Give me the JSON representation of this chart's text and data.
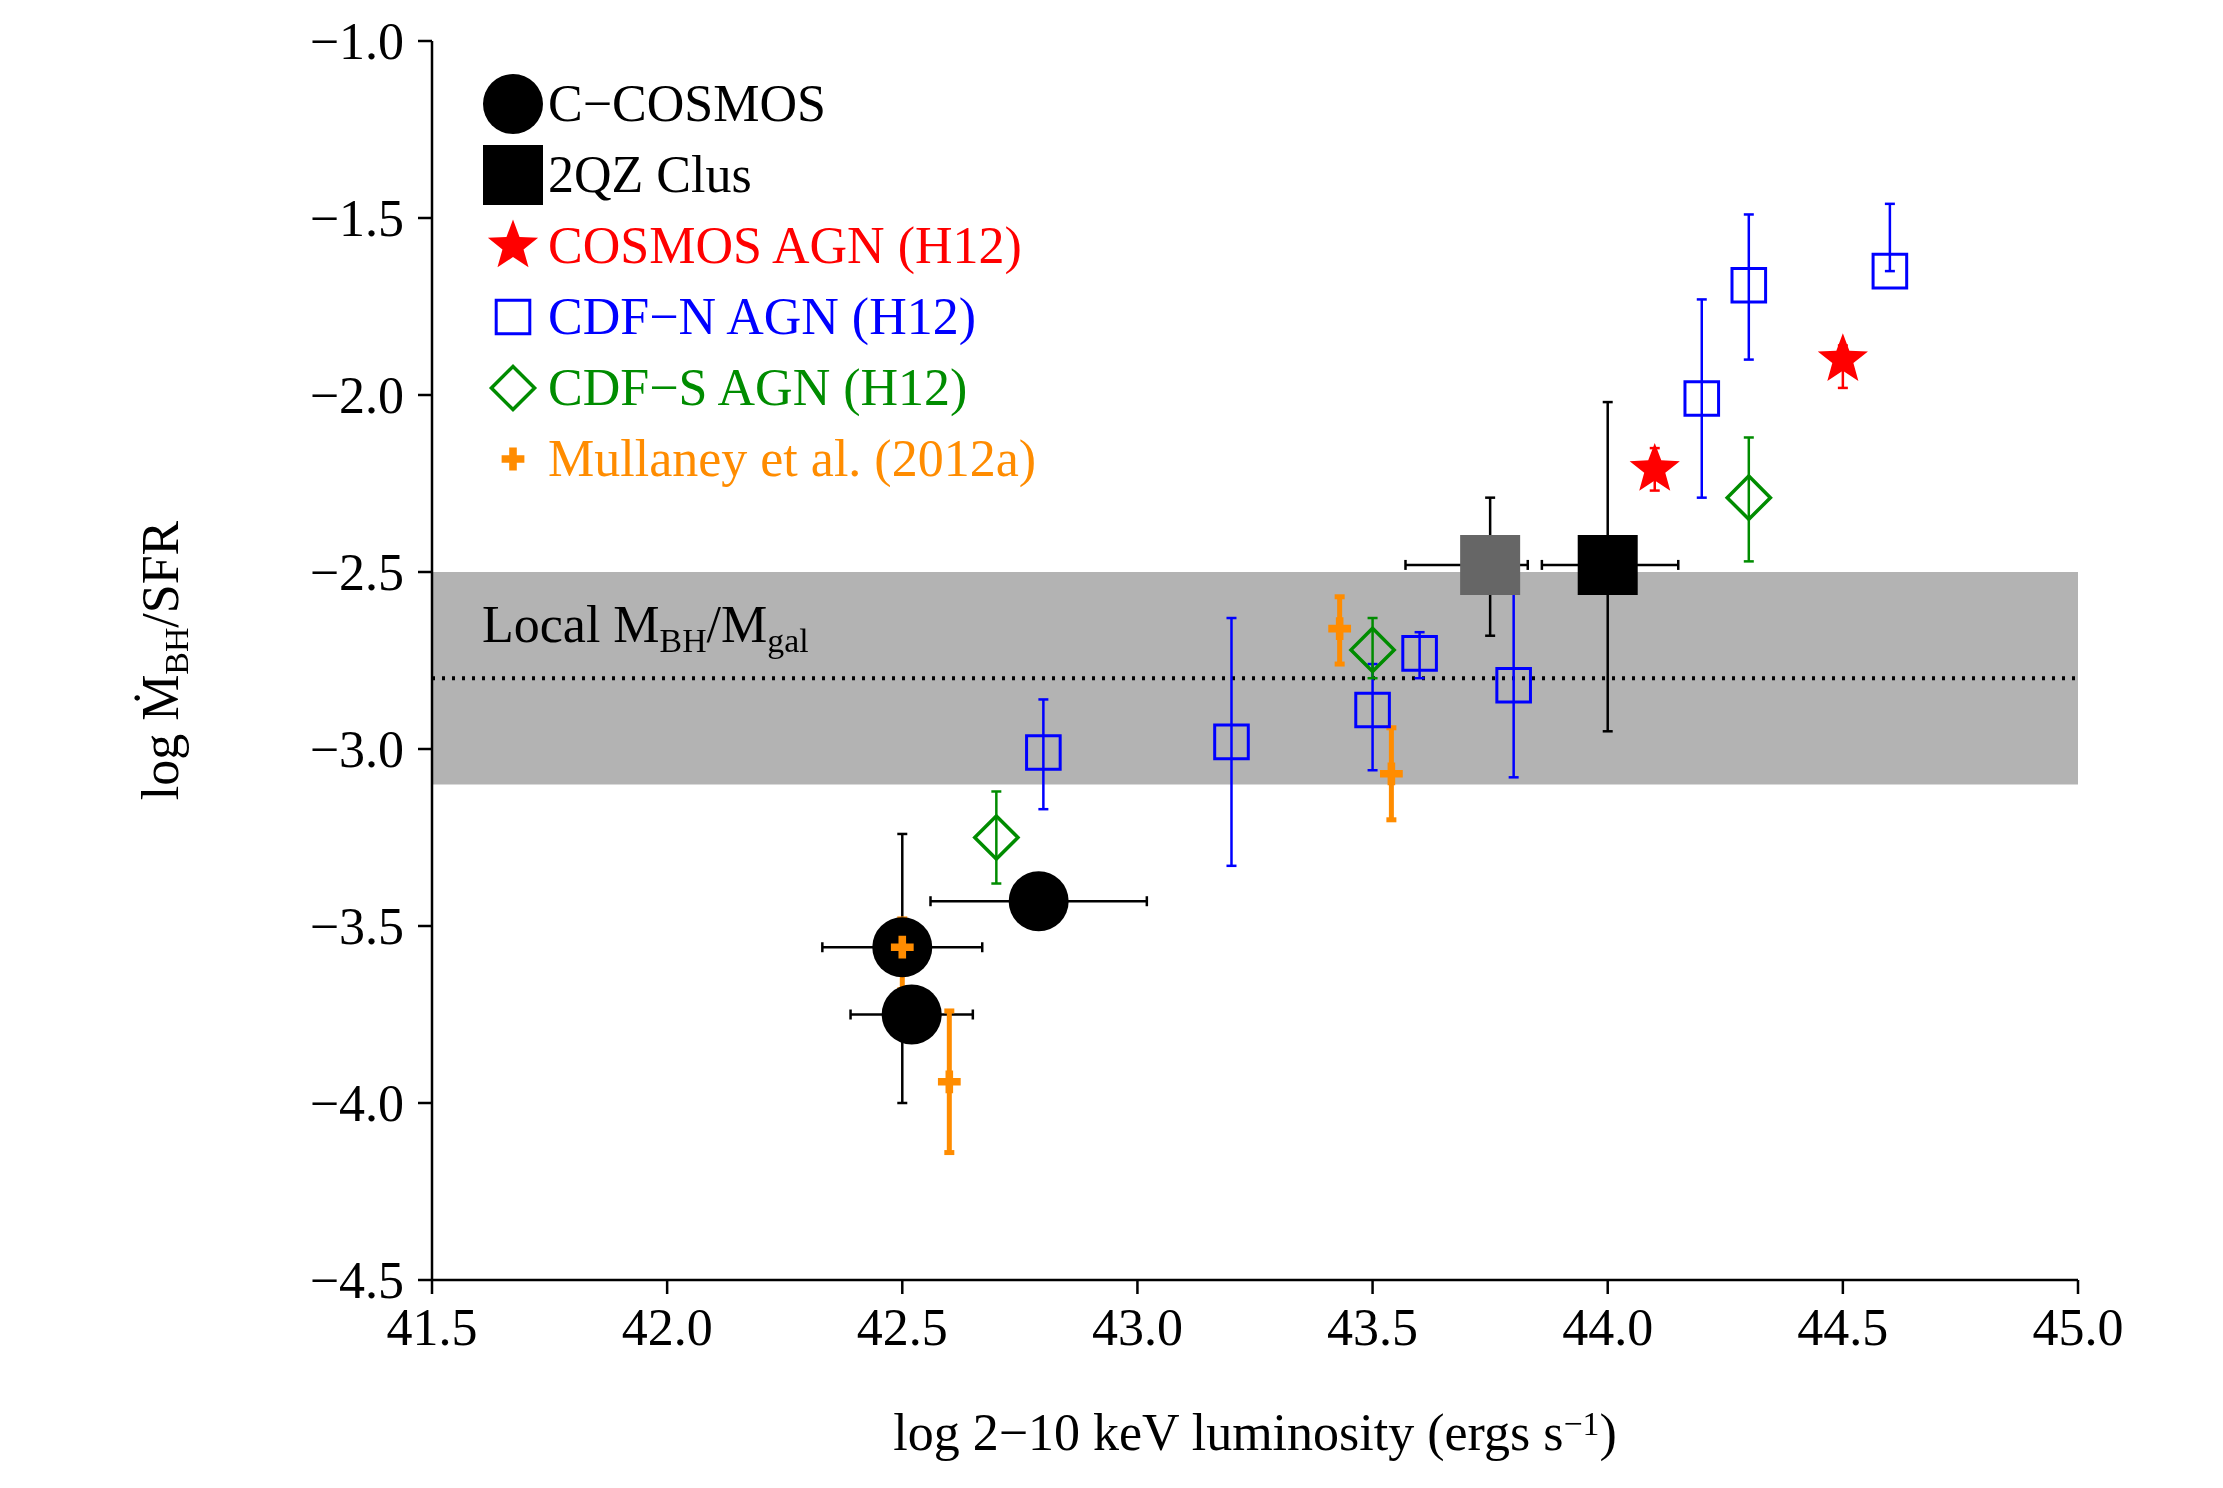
{
  "chart_data": {
    "type": "scatter",
    "xlabel": "log 2−10 keV luminosity (ergs s$^{−1}$)",
    "ylabel": "log Ṁ$_{BH}$/SFR",
    "xlim": [
      41.5,
      45.0
    ],
    "xticks": [
      {
        "value": 41.5,
        "label": "41.5"
      },
      {
        "value": 42,
        "label": "42.0"
      },
      {
        "value": 42.5,
        "label": "42.5"
      },
      {
        "value": 43,
        "label": "43.0"
      },
      {
        "value": 43.5,
        "label": "43.5"
      },
      {
        "value": 44,
        "label": "44.0"
      },
      {
        "value": 44.5,
        "label": "44.5"
      },
      {
        "value": 45,
        "label": "45.0"
      }
    ],
    "ylim": [
      -4.5,
      -1.0
    ],
    "yticks": [
      {
        "value": -4.5,
        "label": "−4.5"
      },
      {
        "value": -4,
        "label": "−4.0"
      },
      {
        "value": -3.5,
        "label": "−3.5"
      },
      {
        "value": -3,
        "label": "−3.0"
      },
      {
        "value": -2.5,
        "label": "−2.5"
      },
      {
        "value": -2,
        "label": "−2.0"
      },
      {
        "value": -1.5,
        "label": "−1.5"
      },
      {
        "value": -1,
        "label": "−1.0"
      }
    ],
    "legend": "top left",
    "bands": [
      {
        "axis": "y",
        "from": -3.1,
        "to": -2.5,
        "label": "Local M$_{BH}$/M$_{gal}$",
        "color": "#b3b3b3"
      }
    ],
    "ref_lines": [
      {
        "axis": "y",
        "value": -2.8,
        "line_style": "dotted",
        "color": "#000000"
      }
    ],
    "series": [
      {
        "name": "C−COSMOS",
        "color": "#000000",
        "marker": "circle",
        "x": [
          42.5,
          42.52,
          42.79
        ],
        "values": [
          -3.56,
          -3.75,
          -3.43
        ],
        "errors": [
          [
            -4.0,
            -3.24
          ],
          null,
          null
        ],
        "xerrors": [
          [
            42.33,
            42.67
          ],
          [
            42.39,
            42.65
          ],
          [
            42.56,
            43.02
          ]
        ]
      },
      {
        "name": "2QZ Clus",
        "color": "#000000",
        "colors": [
          "#666666",
          "#000000"
        ],
        "marker": "square",
        "x": [
          43.75,
          44.0
        ],
        "values": [
          -2.48,
          -2.48
        ],
        "errors": [
          [
            -2.68,
            -2.29
          ],
          [
            -2.95,
            -2.02
          ]
        ],
        "xerrors": [
          [
            43.57,
            43.83
          ],
          [
            43.86,
            44.15
          ]
        ]
      },
      {
        "name": "COSMOS AGN (H12)",
        "color": "#ff0000",
        "marker": "star",
        "x": [
          44.1,
          44.5
        ],
        "values": [
          -2.21,
          -1.9
        ],
        "errors": [
          [
            -2.27,
            -2.15
          ],
          [
            -1.98,
            -1.86
          ]
        ]
      },
      {
        "name": "CDF−N AGN (H12)",
        "color": "#0000ff",
        "marker": "square",
        "x": [
          42.8,
          43.2,
          43.5,
          43.6,
          43.8,
          44.2,
          44.3,
          44.6
        ],
        "values": [
          -3.01,
          -2.98,
          -2.89,
          -2.73,
          -2.82,
          -2.01,
          -1.69,
          -1.65
        ],
        "errors": [
          [
            -3.17,
            -2.86
          ],
          [
            -3.33,
            -2.63
          ],
          [
            -3.06,
            -2.76
          ],
          [
            -2.8,
            -2.67
          ],
          [
            -3.08,
            -2.56
          ],
          [
            -2.29,
            -1.73
          ],
          [
            -1.9,
            -1.49
          ],
          [
            -1.65,
            -1.46
          ]
        ]
      },
      {
        "name": "CDF−S AGN (H12)",
        "color": "#008c00",
        "marker": "diamond",
        "x": [
          42.7,
          43.5,
          44.3
        ],
        "values": [
          -3.25,
          -2.72,
          -2.29
        ],
        "errors": [
          [
            -3.38,
            -3.12
          ],
          [
            -2.8,
            -2.63
          ],
          [
            -2.47,
            -2.12
          ]
        ]
      },
      {
        "name": "Mullaney et al. (2012a)",
        "color": "#ff8c00",
        "marker": "cross",
        "x": [
          42.5,
          42.6,
          43.43,
          43.54
        ],
        "values": [
          -3.56,
          -3.94,
          -2.66,
          -3.07
        ],
        "errors": [
          [
            -3.68,
            -3.48
          ],
          [
            -4.14,
            -3.74
          ],
          [
            -2.76,
            -2.57
          ],
          [
            -3.2,
            -2.94
          ]
        ]
      }
    ]
  }
}
